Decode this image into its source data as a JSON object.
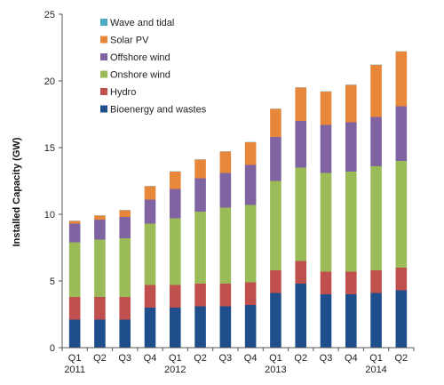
{
  "chart_data": {
    "type": "bar",
    "stacked": true,
    "ylabel": "Installed Capacity (GW)",
    "xlabel": "",
    "ylim": [
      0,
      25
    ],
    "yticks": [
      0,
      5,
      10,
      15,
      20,
      25
    ],
    "grid": false,
    "legend_position": "top-left",
    "categories": [
      "Q1 2011",
      "Q2 2011",
      "Q3 2011",
      "Q4 2011",
      "Q1 2012",
      "Q2 2012",
      "Q3 2012",
      "Q4 2012",
      "Q1 2013",
      "Q2 2013",
      "Q3 2013",
      "Q4 2013",
      "Q1 2014",
      "Q2 2014"
    ],
    "tick_labels": [
      {
        "quarter": "Q1",
        "year": "2011"
      },
      {
        "quarter": "Q2",
        "year": ""
      },
      {
        "quarter": "Q3",
        "year": ""
      },
      {
        "quarter": "Q4",
        "year": ""
      },
      {
        "quarter": "Q1",
        "year": "2012"
      },
      {
        "quarter": "Q2",
        "year": ""
      },
      {
        "quarter": "Q3",
        "year": ""
      },
      {
        "quarter": "Q4",
        "year": ""
      },
      {
        "quarter": "Q1",
        "year": "2013"
      },
      {
        "quarter": "Q2",
        "year": ""
      },
      {
        "quarter": "Q3",
        "year": ""
      },
      {
        "quarter": "Q4",
        "year": ""
      },
      {
        "quarter": "Q1",
        "year": "2014"
      },
      {
        "quarter": "Q2",
        "year": ""
      }
    ],
    "series": [
      {
        "name": "Bioenergy and wastes",
        "color": "#1f4e8c",
        "values": [
          2.1,
          2.1,
          2.1,
          3.0,
          3.0,
          3.1,
          3.1,
          3.2,
          4.1,
          4.8,
          4.0,
          4.0,
          4.1,
          4.3
        ]
      },
      {
        "name": "Hydro",
        "color": "#c0504d",
        "values": [
          1.7,
          1.7,
          1.7,
          1.7,
          1.7,
          1.7,
          1.7,
          1.7,
          1.7,
          1.7,
          1.7,
          1.7,
          1.7,
          1.7
        ]
      },
      {
        "name": "Onshore wind",
        "color": "#9bbb59",
        "values": [
          4.1,
          4.3,
          4.4,
          4.6,
          5.0,
          5.4,
          5.7,
          5.8,
          6.7,
          7.0,
          7.4,
          7.5,
          7.8,
          8.0
        ]
      },
      {
        "name": "Offshore wind",
        "color": "#8064a2",
        "values": [
          1.4,
          1.5,
          1.6,
          1.8,
          2.2,
          2.5,
          2.6,
          3.0,
          3.3,
          3.5,
          3.6,
          3.7,
          3.7,
          4.1
        ]
      },
      {
        "name": "Solar PV",
        "color": "#e8873a",
        "values": [
          0.2,
          0.3,
          0.5,
          1.0,
          1.3,
          1.4,
          1.6,
          1.7,
          2.1,
          2.5,
          2.5,
          2.8,
          3.9,
          4.1
        ]
      },
      {
        "name": "Wave and tidal",
        "color": "#4bacc6",
        "values": [
          0.005,
          0.005,
          0.005,
          0.005,
          0.006,
          0.006,
          0.006,
          0.007,
          0.007,
          0.007,
          0.008,
          0.008,
          0.008,
          0.009
        ]
      }
    ],
    "legend_order": [
      "Wave and tidal",
      "Solar PV",
      "Offshore wind",
      "Onshore wind",
      "Hydro",
      "Bioenergy and wastes"
    ]
  }
}
